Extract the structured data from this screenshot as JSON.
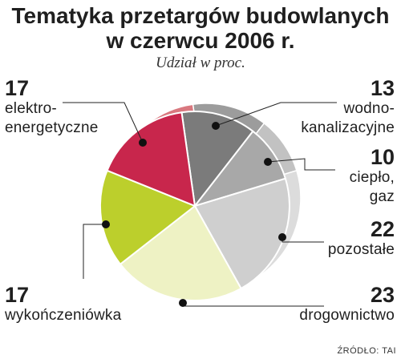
{
  "chart_data": {
    "type": "pie",
    "title": "Tematyka przetargów budowlanych w czerwcu 2006 r.",
    "subtitle": "Udział w proc.",
    "slices": [
      {
        "label": "wodno-kanalizacyjne",
        "value": 13,
        "color": "#7b7b7b",
        "side": "#9c9c9c"
      },
      {
        "label": "ciepło, gaz",
        "value": 10,
        "color": "#a8a8a8",
        "side": "#c2c2c2"
      },
      {
        "label": "pozostałe",
        "value": 22,
        "color": "#cfcfcf",
        "side": "#dcdcdc"
      },
      {
        "label": "drogownictwo",
        "value": 23,
        "color": "#eef2c4",
        "side": "#e3e8b2"
      },
      {
        "label": "wykończeniówka",
        "value": 17,
        "color": "#bccf2c",
        "side": "#a6b822"
      },
      {
        "label": "elektroenergetyczne",
        "value": 17,
        "color": "#c8264c",
        "side": "#d9787f"
      }
    ],
    "source": "ŹRÓDŁO: TAI"
  },
  "labels": {
    "wodno": {
      "value": "13",
      "line1": "wodno-",
      "line2": "kanalizacyjne"
    },
    "cieplo": {
      "value": "10",
      "line1": "ciepło,",
      "line2": "gaz"
    },
    "pozostale": {
      "value": "22",
      "line1": "pozostałe"
    },
    "drogi": {
      "value": "23",
      "line1": "drogownictwo"
    },
    "wykon": {
      "value": "17",
      "line1": "wykończeniówka"
    },
    "elektro": {
      "value": "17",
      "line1": "elektro-",
      "line2": "energetyczne"
    }
  }
}
